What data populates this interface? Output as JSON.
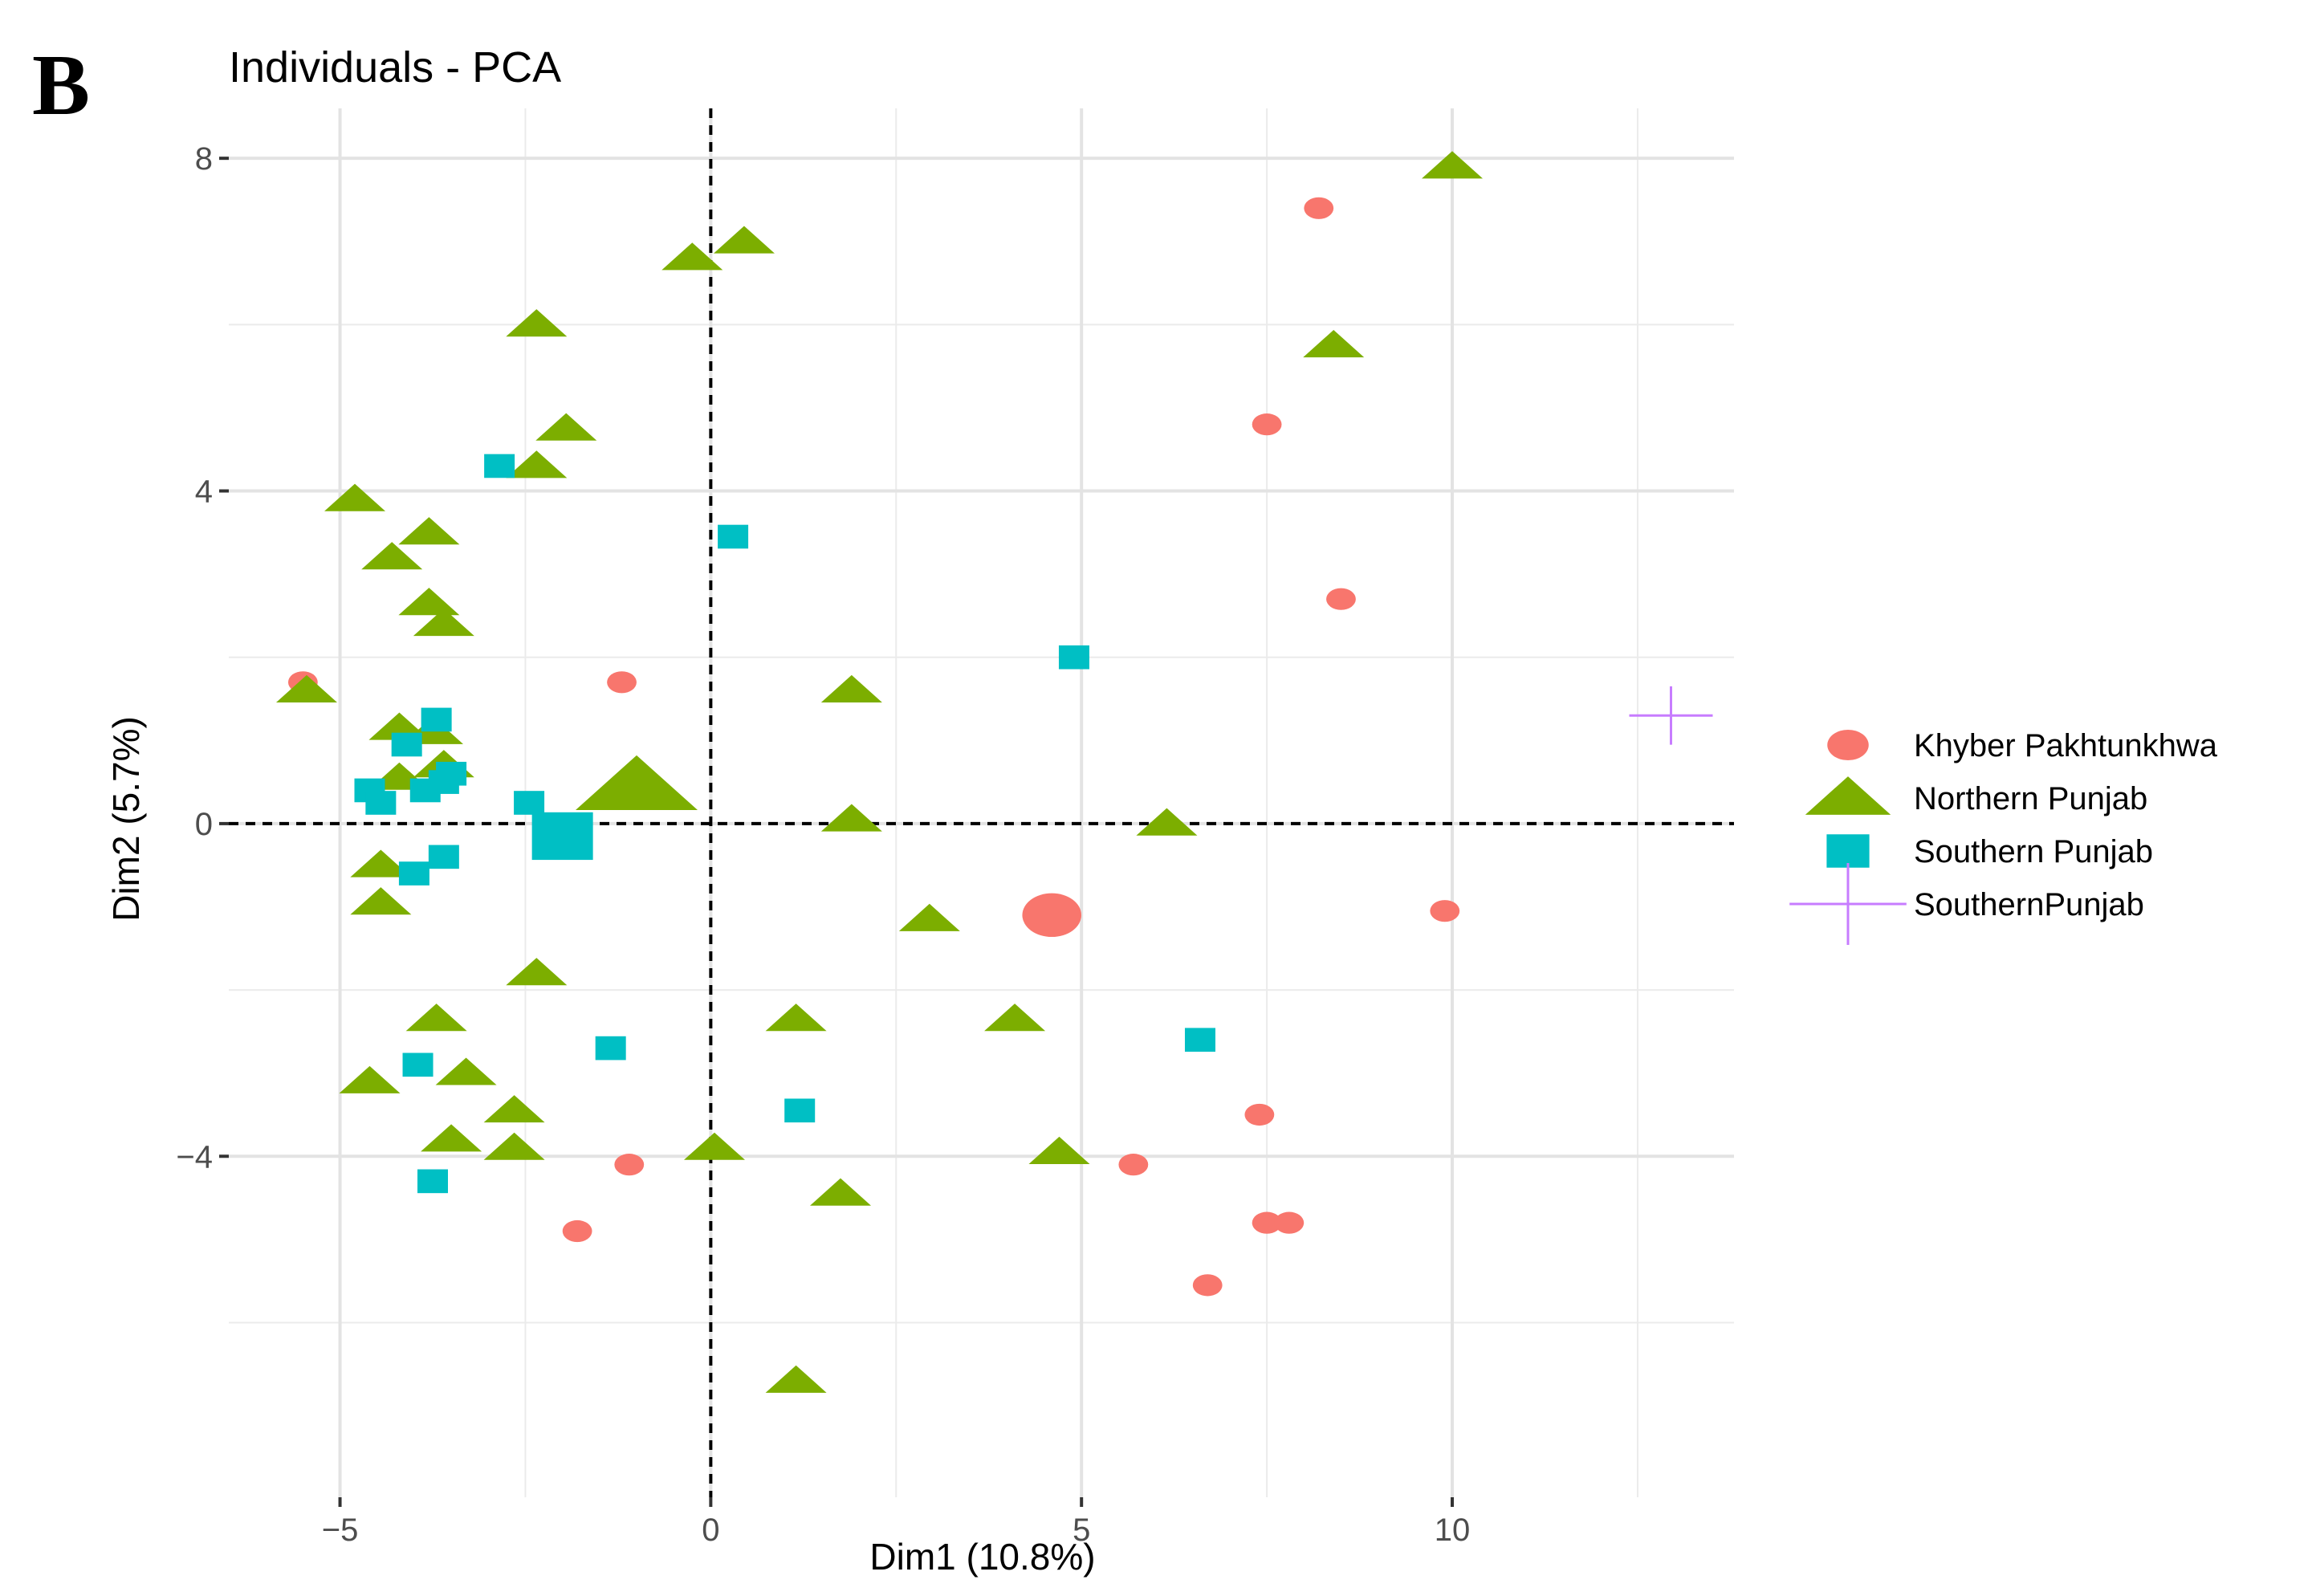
{
  "panel_label": "B",
  "chart_data": {
    "type": "scatter",
    "title": "Individuals - PCA",
    "xlabel": "Dim1 (10.8%)",
    "ylabel": "Dim2 (5.7%)",
    "xlim": [
      -6.5,
      13.8
    ],
    "ylim": [
      -8.1,
      8.6
    ],
    "x_ticks": [
      {
        "value": -5,
        "label": "−5"
      },
      {
        "value": 0,
        "label": "0"
      },
      {
        "value": 5,
        "label": "5"
      },
      {
        "value": 10,
        "label": "10"
      }
    ],
    "y_ticks": [
      {
        "value": 8,
        "label": "8"
      },
      {
        "value": 4,
        "label": "4"
      },
      {
        "value": 0,
        "label": "0"
      },
      {
        "value": -4,
        "label": "−4"
      }
    ],
    "minor_x": [
      -2.5,
      2.5,
      7.5,
      12.5
    ],
    "minor_y": [
      6,
      2,
      -2,
      -6
    ],
    "reference_lines": {
      "x": 0,
      "y": 0
    },
    "legend_position": "right",
    "series": [
      {
        "name": "Khyber Pakhtunkhwa",
        "shape": "circle",
        "color": "#F8766D",
        "points": [
          {
            "x": 8.2,
            "y": 7.4
          },
          {
            "x": 7.5,
            "y": 4.8
          },
          {
            "x": 8.5,
            "y": 2.7
          },
          {
            "x": -5.5,
            "y": 1.7
          },
          {
            "x": -1.2,
            "y": 1.7
          },
          {
            "x": 9.9,
            "y": -1.05
          },
          {
            "x": 7.4,
            "y": -3.5
          },
          {
            "x": 5.7,
            "y": -4.1
          },
          {
            "x": -1.1,
            "y": -4.1
          },
          {
            "x": 7.5,
            "y": -4.8
          },
          {
            "x": 7.8,
            "y": -4.8
          },
          {
            "x": -1.8,
            "y": -4.9
          },
          {
            "x": 6.7,
            "y": -5.55
          }
        ],
        "centroid": {
          "x": 4.6,
          "y": -1.1
        }
      },
      {
        "name": "Northern Punjab",
        "shape": "triangle",
        "color": "#7CAE00",
        "points": [
          {
            "x": 10.0,
            "y": 7.9
          },
          {
            "x": 0.45,
            "y": 7.0
          },
          {
            "x": -0.25,
            "y": 6.8
          },
          {
            "x": -2.35,
            "y": 6.0
          },
          {
            "x": 8.4,
            "y": 5.75
          },
          {
            "x": -1.95,
            "y": 4.75
          },
          {
            "x": -2.35,
            "y": 4.3
          },
          {
            "x": -4.8,
            "y": 3.9
          },
          {
            "x": -3.8,
            "y": 3.5
          },
          {
            "x": -4.3,
            "y": 3.2
          },
          {
            "x": -3.8,
            "y": 2.65
          },
          {
            "x": -3.6,
            "y": 2.4
          },
          {
            "x": -5.45,
            "y": 1.6
          },
          {
            "x": 1.9,
            "y": 1.6
          },
          {
            "x": -4.2,
            "y": 1.15
          },
          {
            "x": -3.75,
            "y": 1.1
          },
          {
            "x": -3.6,
            "y": 0.7
          },
          {
            "x": -4.2,
            "y": 0.55
          },
          {
            "x": 1.9,
            "y": 0.05
          },
          {
            "x": 6.15,
            "y": 0.0
          },
          {
            "x": -4.45,
            "y": -0.5
          },
          {
            "x": -4.45,
            "y": -0.95
          },
          {
            "x": 2.95,
            "y": -1.15
          },
          {
            "x": -2.35,
            "y": -1.8
          },
          {
            "x": -3.7,
            "y": -2.35
          },
          {
            "x": 1.15,
            "y": -2.35
          },
          {
            "x": 4.1,
            "y": -2.35
          },
          {
            "x": -3.3,
            "y": -3.0
          },
          {
            "x": -4.6,
            "y": -3.1
          },
          {
            "x": -2.65,
            "y": -3.45
          },
          {
            "x": -3.5,
            "y": -3.8
          },
          {
            "x": -2.65,
            "y": -3.9
          },
          {
            "x": 0.05,
            "y": -3.9
          },
          {
            "x": 4.7,
            "y": -3.95
          },
          {
            "x": 1.75,
            "y": -4.45
          },
          {
            "x": 1.15,
            "y": -6.7
          }
        ],
        "centroid": {
          "x": -1.0,
          "y": 0.45
        }
      },
      {
        "name": "Southern Punjab",
        "shape": "square",
        "color": "#00BFC4",
        "points": [
          {
            "x": -2.85,
            "y": 4.3
          },
          {
            "x": 0.3,
            "y": 3.45
          },
          {
            "x": 4.9,
            "y": 2.0
          },
          {
            "x": -3.7,
            "y": 1.25
          },
          {
            "x": -4.1,
            "y": 0.95
          },
          {
            "x": -3.5,
            "y": 0.6
          },
          {
            "x": -3.6,
            "y": 0.5
          },
          {
            "x": -4.6,
            "y": 0.4
          },
          {
            "x": -3.85,
            "y": 0.4
          },
          {
            "x": -4.45,
            "y": 0.25
          },
          {
            "x": -2.45,
            "y": 0.25
          },
          {
            "x": -3.6,
            "y": -0.4
          },
          {
            "x": -4.0,
            "y": -0.6
          },
          {
            "x": -1.35,
            "y": -2.7
          },
          {
            "x": 6.6,
            "y": -2.6
          },
          {
            "x": -3.95,
            "y": -2.9
          },
          {
            "x": 1.2,
            "y": -3.45
          },
          {
            "x": -3.75,
            "y": -4.3
          }
        ],
        "centroid": {
          "x": -2.0,
          "y": -0.15
        }
      },
      {
        "name": "SouthernPunjab",
        "shape": "cross",
        "color": "#C77CFF",
        "points": [
          {
            "x": 12.95,
            "y": 1.3
          }
        ]
      }
    ]
  }
}
